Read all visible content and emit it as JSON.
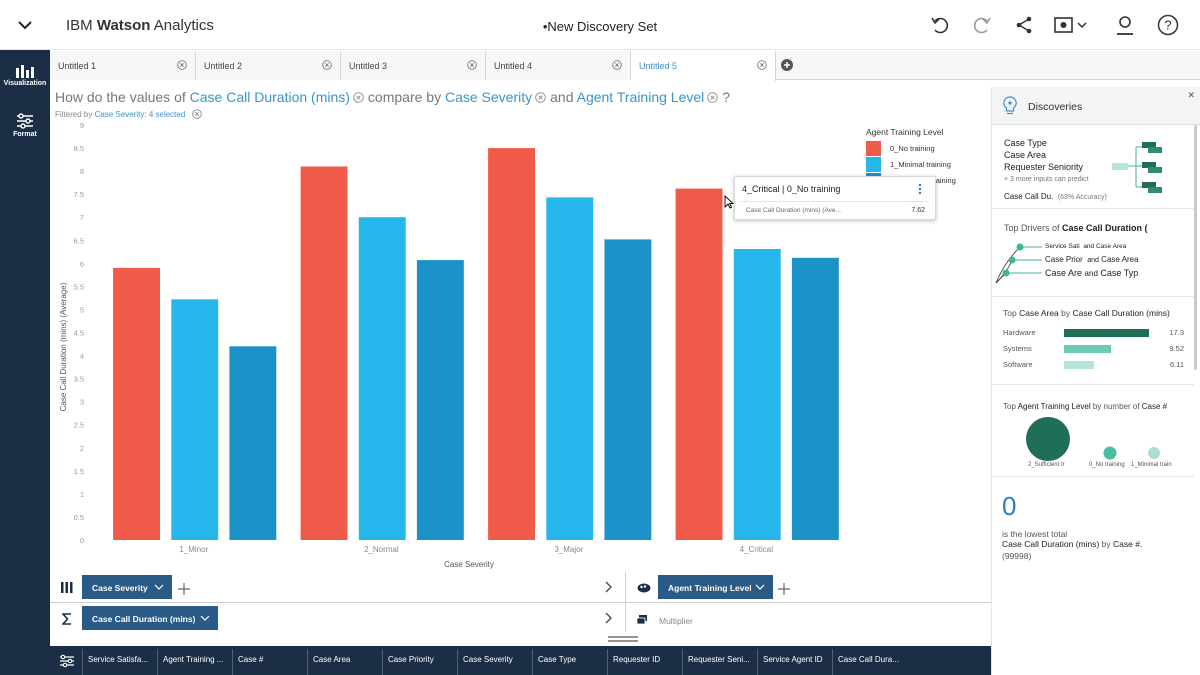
{
  "app": {
    "brand_prefix": "IBM ",
    "brand_bold": "Watson",
    "brand_suffix": " Analytics",
    "doc_title": "•New Discovery Set"
  },
  "toolbar": {
    "icons": [
      "undo-icon",
      "redo-icon",
      "share-icon",
      "camera-icon",
      "user-icon",
      "help-icon"
    ]
  },
  "sidenav": {
    "items": [
      {
        "label": "Visualization",
        "icon": "bar-chart-icon"
      },
      {
        "label": "Format",
        "icon": "sliders-icon"
      }
    ]
  },
  "tabs": [
    {
      "label": "Untitled 1",
      "active": false
    },
    {
      "label": "Untitled 2",
      "active": false
    },
    {
      "label": "Untitled 3",
      "active": false
    },
    {
      "label": "Untitled 4",
      "active": false
    },
    {
      "label": "Untitled 5",
      "active": true
    }
  ],
  "question": {
    "p1": "How do the values of ",
    "field1": "Case Call Duration (mins)",
    "p2": "compare by ",
    "field2": "Case Severity",
    "p3": "and ",
    "field3": "Agent Training Level",
    "p4": "?"
  },
  "filter": {
    "prefix": "Filtered by ",
    "value": "Case Severity: 4 selected"
  },
  "chart_data": {
    "type": "bar",
    "categories": [
      "1_Minor",
      "2_Normal",
      "3_Major",
      "4_Critical"
    ],
    "series": [
      {
        "name": "0_No training",
        "color": "#f05a48",
        "values": [
          5.9,
          8.1,
          8.5,
          7.62
        ]
      },
      {
        "name": "1_Minimal training",
        "color": "#25b6ec",
        "values": [
          5.22,
          7.0,
          7.43,
          6.31
        ]
      },
      {
        "name": "2_Sufficient training",
        "color": "#1b93c8",
        "values": [
          4.2,
          6.07,
          6.52,
          6.12
        ]
      }
    ],
    "xlabel": "Case Severity",
    "ylabel": "Case Call Duration (mins) (Average)",
    "ylim": [
      0,
      9
    ],
    "yticks": [
      "0",
      "0.5",
      "1",
      "1.5",
      "2",
      "2.5",
      "3",
      "3.5",
      "4",
      "4.5",
      "5",
      "5.5",
      "6",
      "6.5",
      "7",
      "7.5",
      "8",
      "8.5",
      "9"
    ],
    "legend_title": "Agent Training Level",
    "legend_position": "right",
    "legend_visible_labels": [
      "0_No training",
      "1_Minimal training",
      "2_Sufficient training"
    ],
    "grid": false
  },
  "tooltip": {
    "title": "4_Critical | 0_No training",
    "metric": "Case Call Duration (mins) (Ave...",
    "value": "7.62"
  },
  "shelf": {
    "x_field": "Case Severity",
    "color_field": "Agent Training Level",
    "measure_field": "Case Call Duration (mins)",
    "multiplier_label": "Multiplier"
  },
  "columns": [
    "Service Satisfa...",
    "Agent Training ...",
    "Case #",
    "Case Area",
    "Case Priority",
    "Case Severity",
    "Case Type",
    "Requester ID",
    "Requester Seni...",
    "Service Agent ID",
    "Case Call Dura..."
  ],
  "discoveries": {
    "title": "Discoveries",
    "card1": {
      "inputs": [
        "Case Type",
        "Case Area",
        "Requester Seniority"
      ],
      "more_note": "+ 3 more inputs can predict",
      "target": "Case Call Du.",
      "accuracy": "(63% Accuracy)"
    },
    "card2": {
      "title_prefix": "Top Drivers of ",
      "title_field": "Case Call Duration (",
      "drivers": [
        {
          "a": "Service Sati",
          "and": "and",
          "b": "Case Area"
        },
        {
          "a": "Case Prior",
          "and": "and",
          "b": "Case Area"
        },
        {
          "a": "Case Are",
          "and": "and",
          "b": "Case Typ"
        }
      ]
    },
    "card3": {
      "title_prefix": "Top ",
      "title_field": "Case Area",
      "title_mid": " by ",
      "title_field2": "Case Call Duration (mins)",
      "rows": [
        {
          "label": "Hardware",
          "value": 17.3,
          "value_label": "17.3",
          "color": "#1e6e58"
        },
        {
          "label": "Systems",
          "value": 9.52,
          "value_label": "9.52",
          "color": "#6cc9b5"
        },
        {
          "label": "Software",
          "value": 6.11,
          "value_label": "6.11",
          "color": "#b5e4da"
        }
      ]
    },
    "card4": {
      "title_prefix": "Top ",
      "title_field": "Agent Training Level",
      "title_mid": " by number of ",
      "title_field2": "Case #",
      "bubbles": [
        {
          "label": "2_Sufficient tr",
          "color": "#1e6e58"
        },
        {
          "label": "0_No training",
          "color": "#4cbda5"
        },
        {
          "label": "1_Minimal train",
          "color": "#a9ddd2"
        }
      ]
    },
    "card5": {
      "big_value": "0",
      "line1": "is the lowest total",
      "field": "Case Call Duration (mins)",
      "by": " by ",
      "field2": "Case #.",
      "id": "(99998)"
    }
  }
}
